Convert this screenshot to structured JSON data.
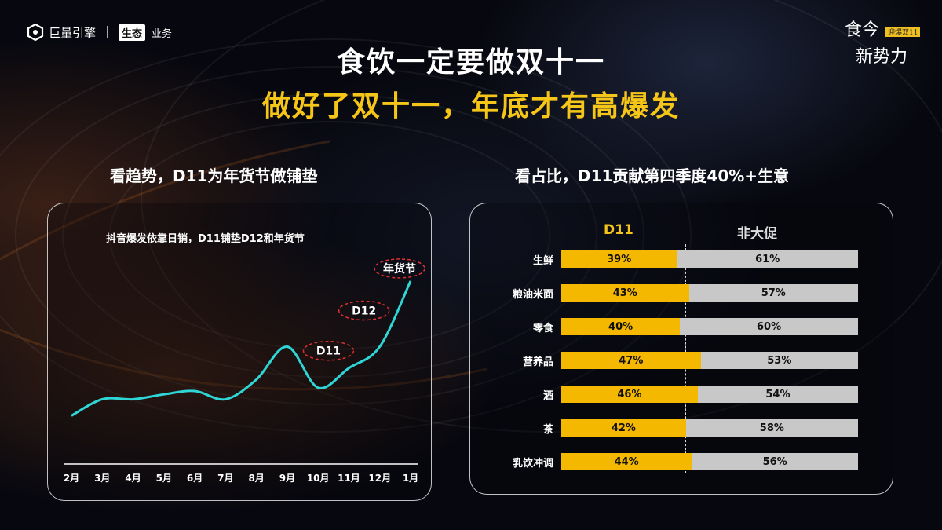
{
  "brand": {
    "name": "巨量引擎",
    "eco": "生态",
    "biz": "业务"
  },
  "campaign": {
    "line1": "食今",
    "tag": "迎爆双11",
    "line2": "新势力"
  },
  "title": {
    "line1": "食饮一定要做双十一",
    "line2": "做好了双十一，年底才有高爆发"
  },
  "colors": {
    "accent": "#f5c518",
    "line": "#2fd6d6",
    "bar_d11": "#f5b800",
    "bar_non": "#c8c8c8"
  },
  "chart_data": [
    {
      "type": "line",
      "heading": "看趋势，D11为年货节做铺垫",
      "title": "抖音爆发依靠日销，D11铺垫D12和年货节",
      "categories": [
        "2月",
        "3月",
        "4月",
        "5月",
        "6月",
        "7月",
        "8月",
        "9月",
        "10月",
        "11月",
        "12月",
        "1月"
      ],
      "values": [
        18,
        28,
        28,
        31,
        33,
        28,
        40,
        60,
        35,
        47,
        60,
        100
      ],
      "ylim": [
        0,
        110
      ],
      "annotations": [
        {
          "label": "D11",
          "at": "11月"
        },
        {
          "label": "D12",
          "at": "12月"
        },
        {
          "label": "年货节",
          "at": "1月"
        }
      ]
    },
    {
      "type": "bar",
      "heading": "看占比，D11贡献第四季度40%+生意",
      "series_labels": [
        "D11",
        "非大促"
      ],
      "categories": [
        "生鲜",
        "粮油米面",
        "零食",
        "营养品",
        "酒",
        "茶",
        "乳饮冲调"
      ],
      "d11": [
        39,
        43,
        40,
        47,
        46,
        42,
        44
      ],
      "non_promo": [
        61,
        57,
        60,
        53,
        54,
        58,
        56
      ],
      "unit": "%"
    }
  ]
}
